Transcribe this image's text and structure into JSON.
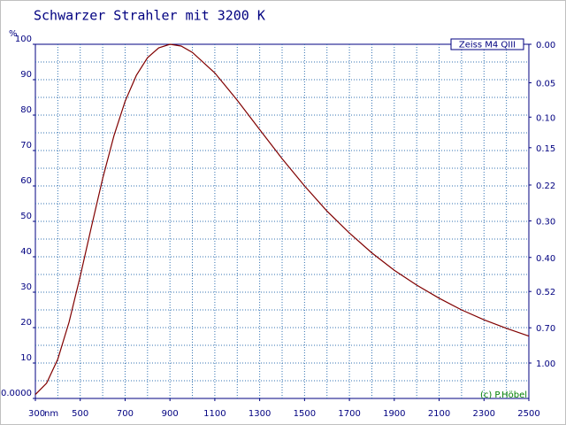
{
  "chart_data": {
    "type": "line",
    "title": "Schwarzer Strahler mit 3200 K",
    "y_unit": "%",
    "x_unit": "nm",
    "legend_label": "Zeiss M4 QIII",
    "credit": "(c) P.Höbel",
    "x": [
      300,
      350,
      400,
      450,
      500,
      550,
      600,
      650,
      700,
      750,
      800,
      850,
      900,
      950,
      1000,
      1100,
      1200,
      1300,
      1400,
      1500,
      1600,
      1700,
      1800,
      1900,
      2000,
      2100,
      2200,
      2300,
      2400,
      2500
    ],
    "series": [
      {
        "color": "#800000",
        "values": [
          1.1,
          4.3,
          11.1,
          21.5,
          34.5,
          48.5,
          62.1,
          74.1,
          83.9,
          91.2,
          96.2,
          99.0,
          100,
          99.5,
          97.7,
          91.9,
          84.2,
          75.9,
          67.7,
          60.0,
          52.9,
          46.7,
          41.1,
          36.2,
          32.0,
          28.3,
          25.0,
          22.2,
          19.8,
          17.6
        ]
      }
    ],
    "xlim": [
      300,
      2500
    ],
    "xticks": [
      300,
      500,
      700,
      900,
      1100,
      1300,
      1500,
      1700,
      1900,
      2100,
      2300,
      2500
    ],
    "ylim": [
      0,
      100
    ],
    "yticks": [
      {
        "value": 0,
        "label": "0.0000"
      },
      10,
      20,
      30,
      40,
      50,
      60,
      70,
      80,
      90,
      100
    ],
    "y2scale": "absorbance",
    "y2ticks": [
      {
        "value": 0,
        "label": "0.00"
      },
      0.05,
      {
        "value": 0.1,
        "label": "0.10"
      },
      0.15,
      0.22,
      {
        "value": 0.3,
        "label": "0.30"
      },
      {
        "value": 0.4,
        "label": "0.40"
      },
      0.52,
      {
        "value": 0.7,
        "label": "0.70"
      },
      {
        "value": 1,
        "label": "1.00"
      }
    ],
    "grid": true,
    "xgrid_step": 100,
    "ygrid_step": 5
  }
}
